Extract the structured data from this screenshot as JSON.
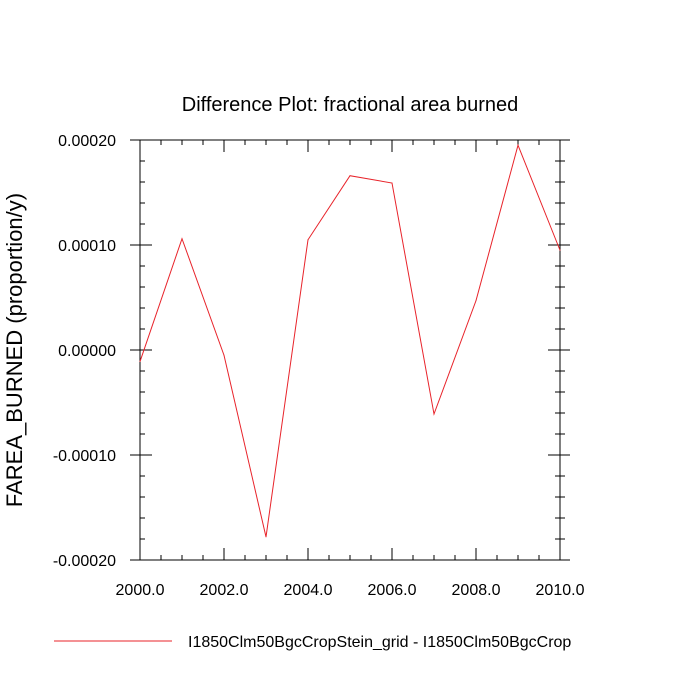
{
  "chart_data": {
    "type": "line",
    "title": "Difference Plot: fractional area burned",
    "xlabel": "",
    "ylabel": "FAREA_BURNED  (proportion/y)",
    "xlim": [
      2000.0,
      2010.0
    ],
    "ylim": [
      -0.0002,
      0.0002
    ],
    "xticks": [
      "2000.0",
      "2002.0",
      "2004.0",
      "2006.0",
      "2008.0",
      "2010.0"
    ],
    "yticks": [
      "0.00020",
      "0.00010",
      "0.00000",
      "-0.00010",
      "-0.00020"
    ],
    "grid": false,
    "legend_position": "bottom",
    "series": [
      {
        "name": "I1850Clm50BgcCropStein_grid - I1850Clm50BgcCrop",
        "color": "#e8232a",
        "x": [
          2000,
          2001,
          2002,
          2003,
          2004,
          2005,
          2006,
          2007,
          2008,
          2009,
          2010
        ],
        "y": [
          -1.1e-05,
          0.000106,
          -5e-06,
          -0.000178,
          0.000105,
          0.000166,
          0.000159,
          -6.1e-05,
          4.7e-05,
          0.000195,
          9.5e-05
        ]
      }
    ]
  }
}
